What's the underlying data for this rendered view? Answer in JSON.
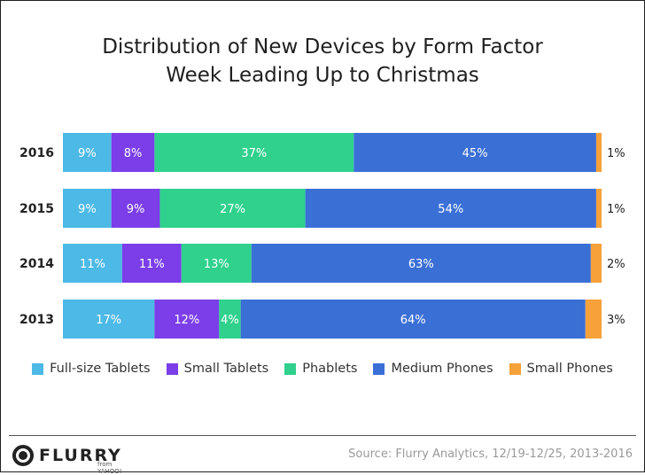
{
  "chart_data": {
    "type": "bar",
    "orientation": "horizontal",
    "stacked": true,
    "title": "Distribution of New Devices by Form Factor",
    "subtitle": "Week Leading Up to Christmas",
    "categories": [
      "2016",
      "2015",
      "2014",
      "2013"
    ],
    "series": [
      {
        "name": "Full-size Tablets",
        "color": "#4cb9e6",
        "values": [
          9,
          9,
          11,
          17
        ],
        "labels": [
          "9%",
          "9%",
          "11%",
          "17%"
        ]
      },
      {
        "name": "Small Tablets",
        "color": "#7b3ee8",
        "values": [
          8,
          9,
          11,
          12
        ],
        "labels": [
          "8%",
          "9%",
          "11%",
          "12%"
        ]
      },
      {
        "name": "Phablets",
        "color": "#2fd18d",
        "values": [
          37,
          27,
          13,
          4
        ],
        "labels": [
          "37%",
          "27%",
          "13%",
          "4%"
        ]
      },
      {
        "name": "Medium Phones",
        "color": "#3a6fd6",
        "values": [
          45,
          54,
          63,
          64
        ],
        "labels": [
          "45%",
          "54%",
          "63%",
          "64%"
        ]
      },
      {
        "name": "Small Phones",
        "color": "#f6a13a",
        "values": [
          1,
          1,
          2,
          3
        ],
        "labels": [
          "1%",
          "1%",
          "2%",
          "3%"
        ]
      }
    ],
    "xlim": [
      0,
      100
    ],
    "legend_position": "bottom",
    "grid": false
  },
  "legend": {
    "items": [
      {
        "label": "Full-size Tablets",
        "color": "#4cb9e6"
      },
      {
        "label": "Small Tablets",
        "color": "#7b3ee8"
      },
      {
        "label": "Phablets",
        "color": "#2fd18d"
      },
      {
        "label": "Medium Phones",
        "color": "#3a6fd6"
      },
      {
        "label": "Small Phones",
        "color": "#f6a13a"
      }
    ]
  },
  "footer": {
    "logo_text": "FLURRY",
    "logo_sub": "from YAHOO!",
    "source": "Source: Flurry Analytics, 12/19-12/25, 2013-2016"
  }
}
